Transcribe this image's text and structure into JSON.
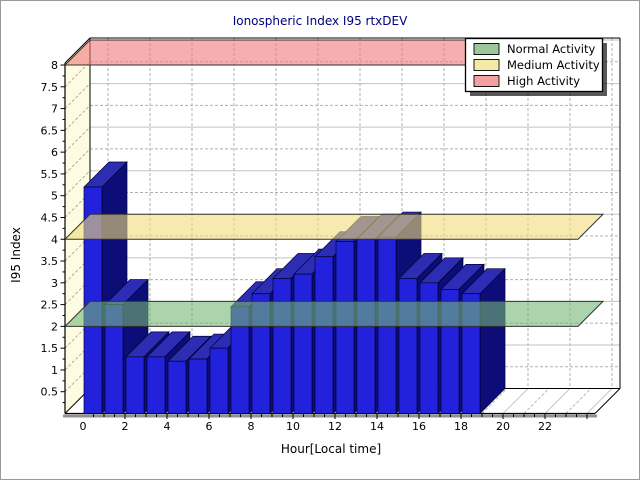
{
  "chart_data": {
    "type": "bar",
    "title": "Ionospheric Index I95 rtxDEV",
    "xlabel": "Hour[Local time]",
    "ylabel": "I95 Index",
    "x": [
      0,
      1,
      2,
      3,
      4,
      5,
      6,
      7,
      8,
      9,
      10,
      11,
      12,
      13,
      14,
      15,
      16,
      17,
      18
    ],
    "values": [
      5.2,
      2.5,
      1.3,
      1.3,
      1.2,
      1.25,
      1.5,
      2.45,
      2.75,
      3.1,
      3.2,
      3.6,
      3.95,
      4.0,
      4.05,
      3.1,
      3.0,
      2.85,
      2.75
    ],
    "x_tick_labels": [
      0,
      2,
      4,
      6,
      8,
      10,
      12,
      14,
      16,
      18,
      20,
      22
    ],
    "y_ticks": [
      0.5,
      1,
      1.5,
      2,
      2.5,
      3,
      3.5,
      4,
      4.5,
      5,
      5.5,
      6,
      6.5,
      7,
      7.5,
      8
    ],
    "xlim": [
      0,
      24.4
    ],
    "ylim": [
      0,
      8.05
    ],
    "grid": "dashed gray on back wall, 3d projection depth 25px",
    "bands": [
      {
        "label": "Normal Activity",
        "level": 2,
        "color": "#74b874"
      },
      {
        "label": "Medium Activity",
        "level": 4,
        "color": "#f0dc78"
      },
      {
        "label": "High Activity",
        "level": 8,
        "color": "#f07878"
      }
    ],
    "legend": {
      "position": "top-right",
      "entries": [
        {
          "label": "Normal Activity",
          "swatch": "#9CC69C"
        },
        {
          "label": "Medium Activity",
          "swatch": "#F5E9A8"
        },
        {
          "label": "High Activity",
          "swatch": "#F5A0A0"
        }
      ]
    }
  },
  "colors": {
    "title": "#00007d",
    "text": "#000000",
    "bar_front": "#2222dd",
    "bar_top": "#2d2db4",
    "bar_side": "#0d0d78",
    "bar_outline": "#000033",
    "wall_fill": "#fdfbe0",
    "wall_line": "#a8a8a8",
    "back_fill": "#ffffff",
    "grid_solid": "#c2c2c2",
    "grid_dashed": "#b0b0b0",
    "frame": "#000000",
    "band_opacity": "0.6",
    "panel_border": "#9a9a9a",
    "legend_bg": "#ffffff",
    "legend_border": "#000000",
    "legend_shadow": "#000000"
  }
}
